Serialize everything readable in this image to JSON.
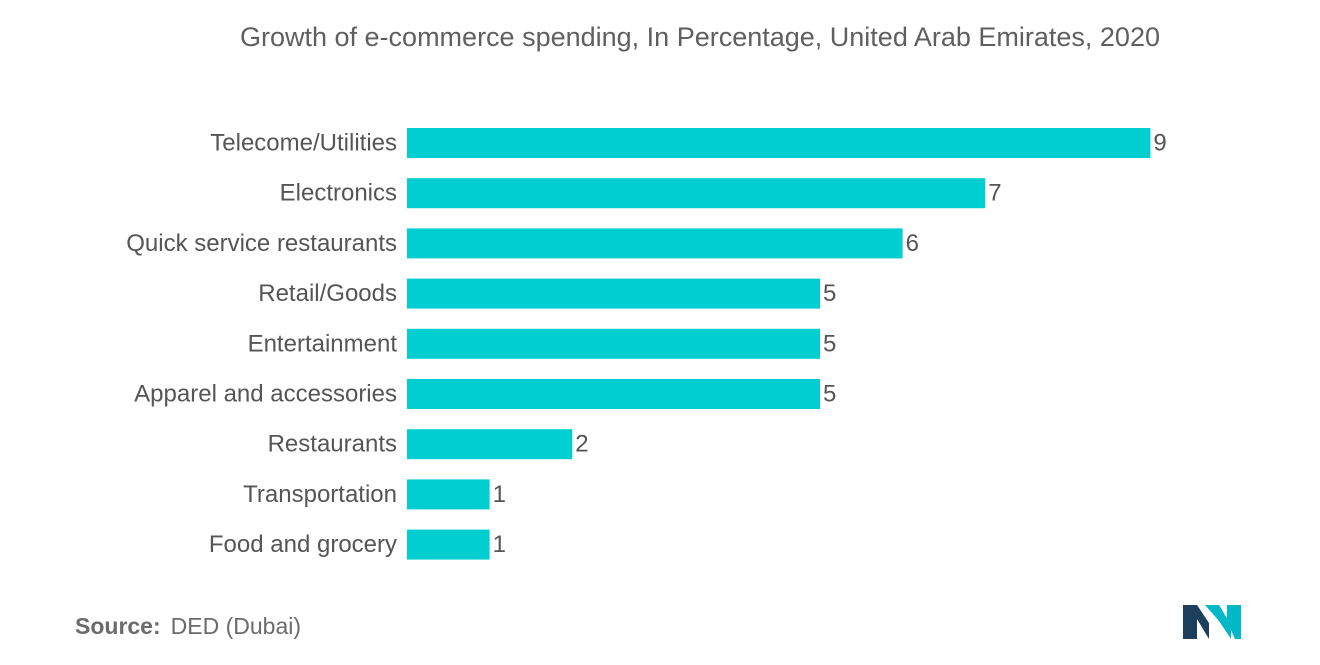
{
  "chart_data": {
    "type": "bar",
    "orientation": "horizontal",
    "title": "Growth of e-commerce spending, In Percentage, United Arab Emirates, 2020",
    "categories": [
      "Telecome/Utilities",
      "Electronics",
      "Quick service restaurants",
      "Retail/Goods",
      "Entertainment",
      "Apparel and accessories",
      "Restaurants",
      "Transportation",
      "Food and grocery"
    ],
    "values": [
      9,
      7,
      6,
      5,
      5,
      5,
      2,
      1,
      1
    ],
    "xlabel": "",
    "ylabel": "",
    "xlim": [
      0,
      9
    ],
    "grid": false,
    "legend": "none",
    "bar_color": "#00CED1"
  },
  "footer": {
    "source_key": "Source:",
    "source_value": "DED (Dubai)"
  },
  "logo": {
    "icon": "mordor-intelligence-logo-icon",
    "colors": [
      "#1d3f5e",
      "#00b8c8"
    ]
  }
}
